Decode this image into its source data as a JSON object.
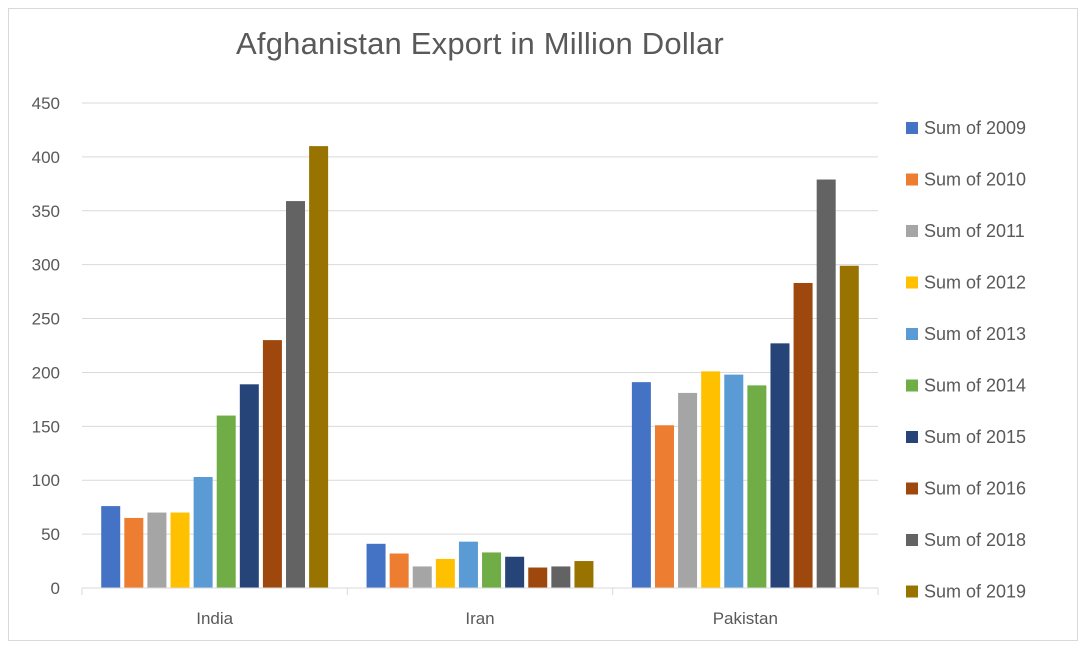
{
  "chart_data": {
    "type": "bar",
    "title": "Afghanistan Export in Million Dollar",
    "xlabel": "",
    "ylabel": "",
    "ylim": [
      0,
      450
    ],
    "yticks": [
      0,
      50,
      100,
      150,
      200,
      250,
      300,
      350,
      400,
      450
    ],
    "grid": true,
    "legend_position": "right",
    "categories": [
      "India",
      "Iran",
      "Pakistan"
    ],
    "series": [
      {
        "name": "Sum of 2009",
        "color": "#4472C4",
        "values": [
          76,
          41,
          191
        ]
      },
      {
        "name": "Sum of 2010",
        "color": "#ED7D31",
        "values": [
          65,
          32,
          151
        ]
      },
      {
        "name": "Sum of 2011",
        "color": "#A5A5A5",
        "values": [
          70,
          20,
          181
        ]
      },
      {
        "name": "Sum of 2012",
        "color": "#FFC000",
        "values": [
          70,
          27,
          201
        ]
      },
      {
        "name": "Sum of 2013",
        "color": "#5B9BD5",
        "values": [
          103,
          43,
          198
        ]
      },
      {
        "name": "Sum of 2014",
        "color": "#70AD47",
        "values": [
          160,
          33,
          188
        ]
      },
      {
        "name": "Sum of 2015",
        "color": "#264478",
        "values": [
          189,
          29,
          227
        ]
      },
      {
        "name": "Sum of 2016",
        "color": "#9E480E",
        "values": [
          230,
          19,
          283
        ]
      },
      {
        "name": "Sum of 2018",
        "color": "#636363",
        "values": [
          359,
          20,
          379
        ]
      },
      {
        "name": "Sum of 2019",
        "color": "#997300",
        "values": [
          410,
          25,
          299
        ]
      }
    ]
  }
}
